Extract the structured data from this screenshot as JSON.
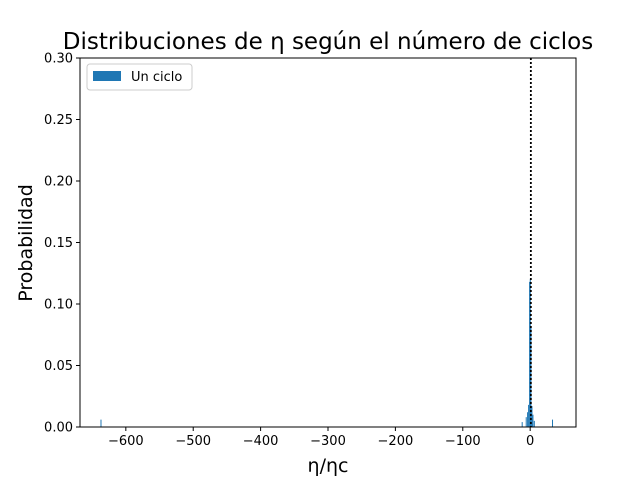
{
  "chart_data": {
    "type": "bar",
    "title": "Distribuciones de η según el número de ciclos",
    "xlabel": "η/ηc",
    "ylabel": "Probabilidad",
    "xlim": [
      -668,
      68
    ],
    "ylim": [
      0,
      0.3
    ],
    "x_ticks": [
      -600,
      -500,
      -400,
      -300,
      -200,
      -100,
      0
    ],
    "x_tick_labels": [
      "−600",
      "−500",
      "−400",
      "−300",
      "−200",
      "−100",
      "0"
    ],
    "y_ticks": [
      0.0,
      0.05,
      0.1,
      0.15,
      0.2,
      0.25,
      0.3
    ],
    "y_tick_labels": [
      "0.00",
      "0.05",
      "0.10",
      "0.15",
      "0.20",
      "0.25",
      "0.30"
    ],
    "legend_position": "upper-left",
    "grid": false,
    "reference_line": {
      "x": 1,
      "style": "dotted",
      "color": "#000000"
    },
    "series": [
      {
        "name": "Un ciclo",
        "color": "#1f77b4",
        "bin_width": 1.2,
        "bars": [
          {
            "x": -637,
            "value": 0.006
          },
          {
            "x": -12,
            "value": 0.004
          },
          {
            "x": -6,
            "value": 0.008
          },
          {
            "x": -4,
            "value": 0.012
          },
          {
            "x": -2.5,
            "value": 0.018
          },
          {
            "x": -1,
            "value": 0.118
          },
          {
            "x": 0,
            "value": 0.12
          },
          {
            "x": 1,
            "value": 0.082
          },
          {
            "x": 2.5,
            "value": 0.017
          },
          {
            "x": 4,
            "value": 0.01
          },
          {
            "x": 6,
            "value": 0.005
          },
          {
            "x": 33,
            "value": 0.006
          }
        ]
      }
    ]
  }
}
